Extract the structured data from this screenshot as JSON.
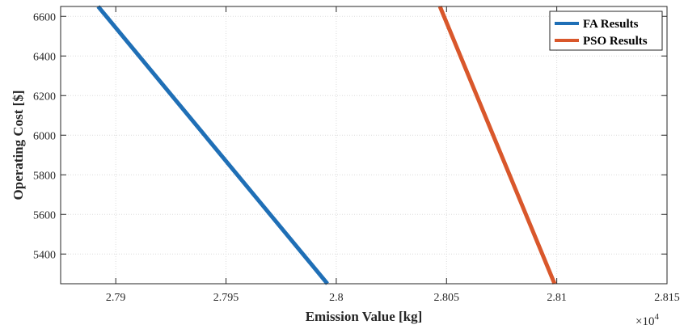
{
  "chart_data": {
    "type": "line",
    "title": "",
    "xlabel": "Emission Value [kg]",
    "ylabel": "Operating Cost [$]",
    "x_exponent_base": "×10",
    "x_exponent_power": "4",
    "xlim": [
      2.7875,
      2.815
    ],
    "ylim": [
      5250,
      6650
    ],
    "xticks": [
      2.79,
      2.795,
      2.8,
      2.805,
      2.81,
      2.815
    ],
    "xtick_labels": [
      "2.79",
      "2.795",
      "2.8",
      "2.805",
      "2.81",
      "2.815"
    ],
    "yticks": [
      5400,
      5600,
      5800,
      6000,
      6200,
      6400,
      6600
    ],
    "ytick_labels": [
      "5400",
      "5600",
      "5800",
      "6000",
      "6200",
      "6400",
      "6600"
    ],
    "grid": true,
    "legend_position": "top-right",
    "series": [
      {
        "name": "FA Results",
        "color": "#1f6fb6",
        "x": [
          2.7892,
          2.7996
        ],
        "y": [
          6650,
          5250
        ]
      },
      {
        "name": "PSO Results",
        "color": "#d9572b",
        "x": [
          2.8047,
          2.8099
        ],
        "y": [
          6650,
          5250
        ]
      }
    ]
  }
}
